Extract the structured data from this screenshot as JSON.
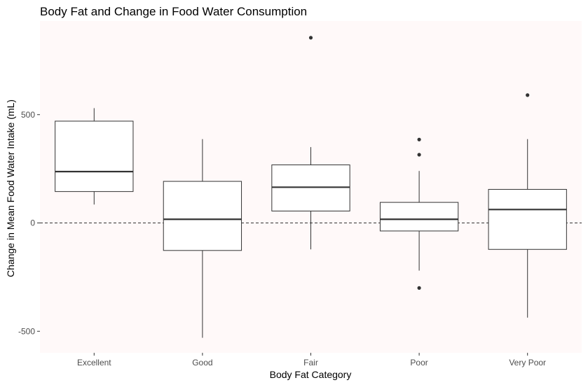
{
  "chart_data": {
    "type": "box",
    "title": "Body Fat and Change in Food Water Consumption",
    "xlabel": "Body Fat Category",
    "ylabel": "Change in Mean Food Water Intake (mL)",
    "categories": [
      "Excellent",
      "Good",
      "Fair",
      "Poor",
      "Very Poor"
    ],
    "ylim": [
      -600,
      870
    ],
    "yticks": [
      -500,
      0,
      500
    ],
    "reference_line": {
      "y": 0,
      "style": "dashed"
    },
    "grid": false,
    "panel_color": "#fff9f9",
    "boxes": [
      {
        "category": "Excellent",
        "whisker_low": 85,
        "q1": 145,
        "median": 237,
        "q3": 470,
        "whisker_high": 530,
        "outliers": []
      },
      {
        "category": "Good",
        "whisker_low": -530,
        "q1": -127,
        "median": 17,
        "q3": 192,
        "whisker_high": 387,
        "outliers": []
      },
      {
        "category": "Fair",
        "whisker_low": -122,
        "q1": 55,
        "median": 165,
        "q3": 268,
        "whisker_high": 350,
        "outliers": [
          855
        ]
      },
      {
        "category": "Poor",
        "whisker_low": -220,
        "q1": -37,
        "median": 17,
        "q3": 95,
        "whisker_high": 240,
        "outliers": [
          385,
          315,
          -300
        ]
      },
      {
        "category": "Very Poor",
        "whisker_low": -437,
        "q1": -122,
        "median": 62,
        "q3": 155,
        "whisker_high": 387,
        "outliers": [
          590
        ]
      }
    ]
  }
}
